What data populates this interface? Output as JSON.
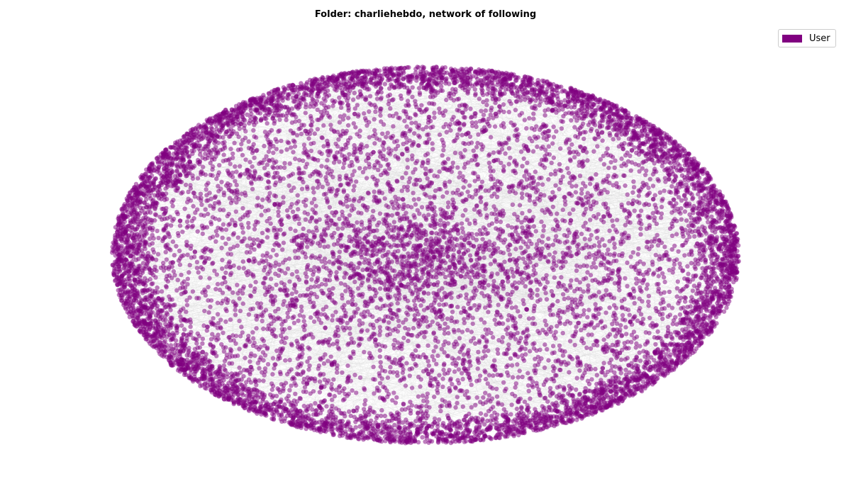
{
  "title": "Folder: charliehebdo, network of following",
  "legend": {
    "entries": [
      {
        "label": "User",
        "color": "#800080"
      }
    ]
  },
  "colors": {
    "node": "#800080",
    "edge": "#d3d3d3",
    "background": "#ffffff"
  },
  "chart_data": {
    "type": "network",
    "layout": "spring (elliptical, dense ring at perimeter)",
    "node_types": [
      "User"
    ],
    "node_opacity": 0.5,
    "legend_position": "top-right",
    "axes": "off"
  }
}
